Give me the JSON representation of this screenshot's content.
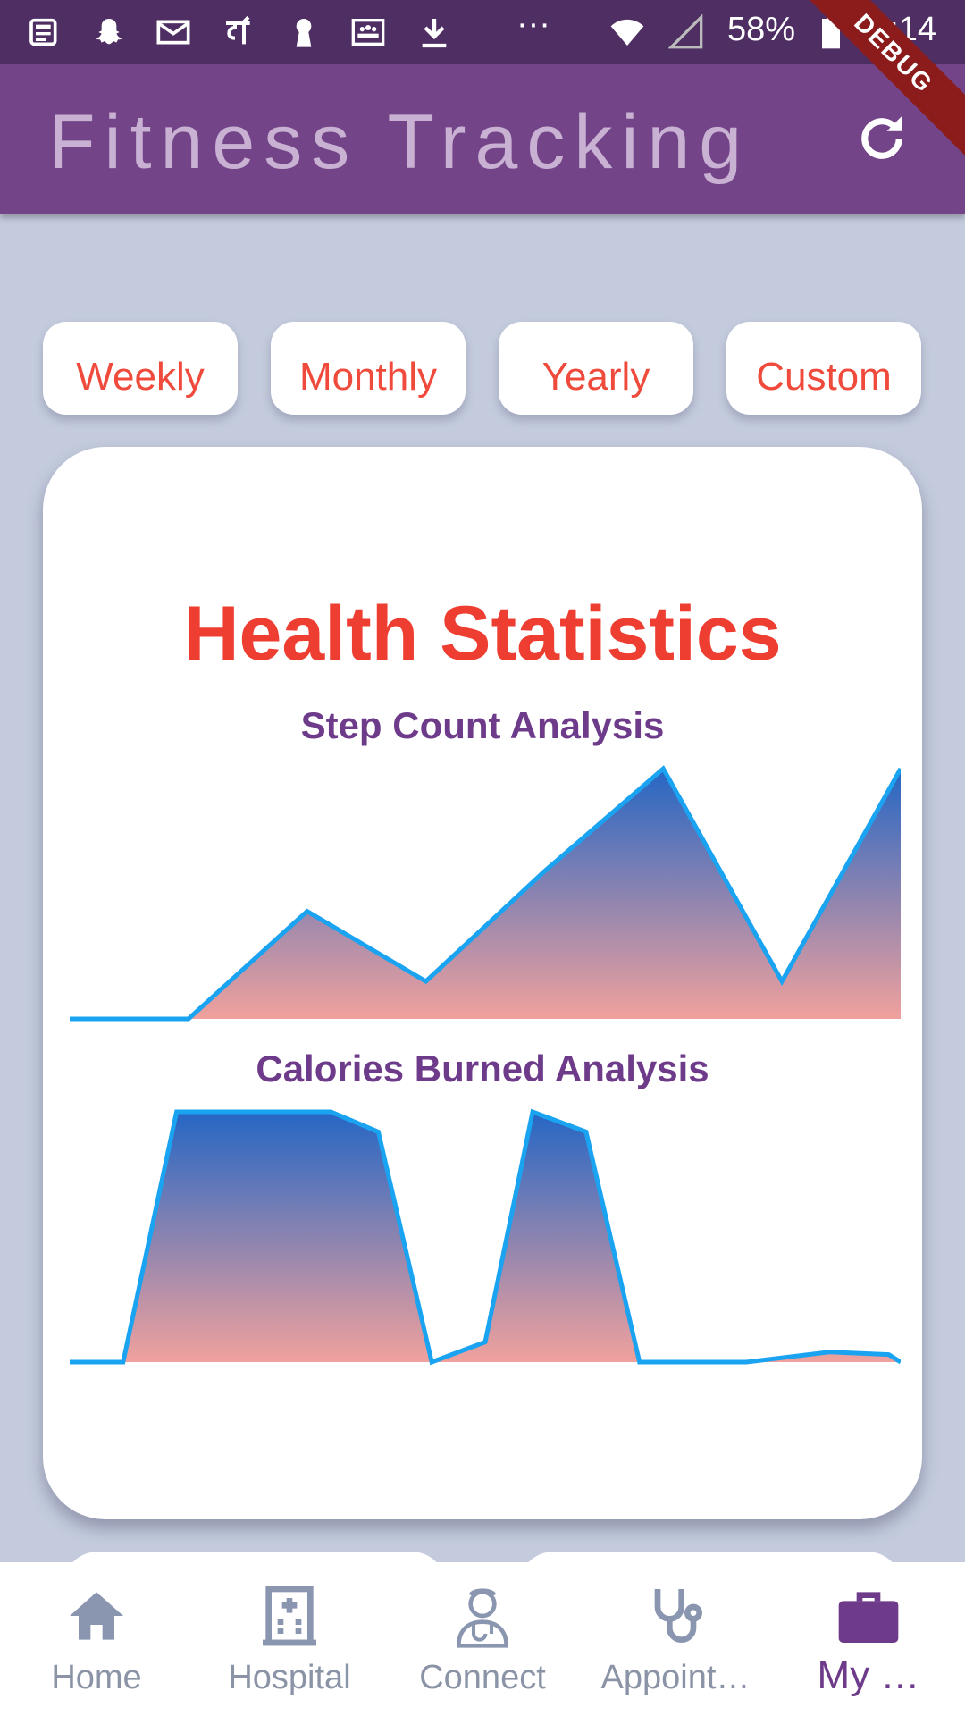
{
  "status_bar": {
    "battery": "58%",
    "time": "5:14",
    "overflow": "···",
    "debug_label": "DEBUG"
  },
  "app_bar": {
    "title": "Fitness Tracking",
    "refresh_icon": "refresh-icon"
  },
  "range_tabs": [
    "Weekly",
    "Monthly",
    "Yearly",
    "Custom"
  ],
  "card": {
    "title": "Health Statistics"
  },
  "colors": {
    "accent_red": "#ef4a3b",
    "purple": "#734487",
    "line_blue": "#1aa3f0",
    "gradient_top": "#2566c4",
    "gradient_bottom": "#f0a19d"
  },
  "chart_data": [
    {
      "type": "area",
      "title": "Step Count Analysis",
      "x": [
        0,
        1,
        2,
        3,
        4,
        5,
        6,
        7
      ],
      "values": [
        0,
        0,
        4300,
        1500,
        5900,
        10000,
        1500,
        10000
      ],
      "ylim": [
        0,
        10000
      ],
      "grid": false
    },
    {
      "type": "area",
      "title": "Calories Burned Analysis",
      "x": [
        0,
        0.45,
        0.9,
        2.2,
        2.6,
        3.05,
        3.5,
        3.9,
        4.35,
        4.8,
        5.7,
        6.4,
        6.9,
        7.0
      ],
      "values": [
        0,
        0,
        100,
        100,
        92,
        0,
        8,
        100,
        92,
        0,
        0,
        4,
        3,
        0
      ],
      "ylim": [
        0,
        100
      ],
      "grid": false
    }
  ],
  "bottom_nav": [
    {
      "label": "Home",
      "icon": "home-icon"
    },
    {
      "label": "Hospital",
      "icon": "hospital-icon"
    },
    {
      "label": "Connect",
      "icon": "doctor-icon"
    },
    {
      "label": "Appoint…",
      "icon": "stethoscope-icon"
    },
    {
      "label": "My …",
      "icon": "briefcase-icon",
      "active": true
    }
  ]
}
